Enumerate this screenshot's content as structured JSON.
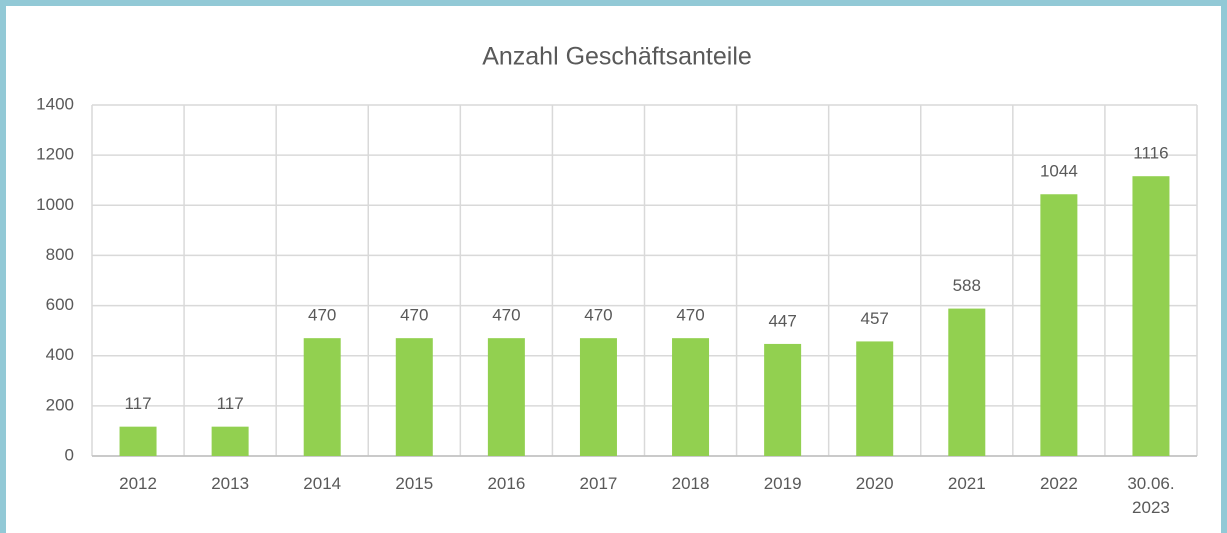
{
  "chart_data": {
    "type": "bar",
    "title": "Anzahl Geschäftsanteile",
    "categories": [
      "2012",
      "2013",
      "2014",
      "2015",
      "2016",
      "2017",
      "2018",
      "2019",
      "2020",
      "2021",
      "2022",
      "30.06. 2023"
    ],
    "values": [
      117,
      117,
      470,
      470,
      470,
      470,
      470,
      447,
      457,
      588,
      1044,
      1116
    ],
    "color": "#92d050",
    "ylim": [
      0,
      1400
    ],
    "yticks": [
      0,
      200,
      400,
      600,
      800,
      1000,
      1200,
      1400
    ],
    "grid": true
  }
}
